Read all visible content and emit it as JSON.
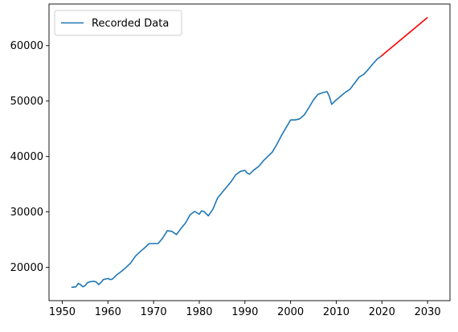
{
  "chart_data": {
    "type": "line",
    "xlim": [
      1947.1,
      2034.9
    ],
    "ylim": [
      14000,
      67500
    ],
    "x_ticks": [
      1950,
      1960,
      1970,
      1980,
      1990,
      2000,
      2010,
      2020,
      2030
    ],
    "y_ticks": [
      20000,
      30000,
      40000,
      50000,
      60000
    ],
    "grid": false,
    "legend_position": "top-left",
    "series": [
      {
        "name": "Recorded Data",
        "color": "#1f77b4",
        "points": [
          [
            1952.0,
            16400
          ],
          [
            1953.0,
            16500
          ],
          [
            1953.5,
            17100
          ],
          [
            1954.0,
            16900
          ],
          [
            1954.5,
            16500
          ],
          [
            1955.0,
            16700
          ],
          [
            1955.5,
            17200
          ],
          [
            1956.0,
            17400
          ],
          [
            1957.0,
            17500
          ],
          [
            1957.5,
            17300
          ],
          [
            1958.0,
            16900
          ],
          [
            1958.5,
            17300
          ],
          [
            1959.0,
            17800
          ],
          [
            1960.0,
            18000
          ],
          [
            1960.5,
            17800
          ],
          [
            1961.0,
            17900
          ],
          [
            1962.0,
            18700
          ],
          [
            1963.0,
            19300
          ],
          [
            1964.0,
            20000
          ],
          [
            1965.0,
            20800
          ],
          [
            1966.0,
            22000
          ],
          [
            1967.0,
            22800
          ],
          [
            1968.0,
            23500
          ],
          [
            1969.0,
            24300
          ],
          [
            1970.0,
            24300
          ],
          [
            1971.0,
            24300
          ],
          [
            1972.0,
            25300
          ],
          [
            1973.0,
            26600
          ],
          [
            1974.0,
            26500
          ],
          [
            1975.0,
            25900
          ],
          [
            1976.0,
            27000
          ],
          [
            1977.0,
            28000
          ],
          [
            1978.0,
            29500
          ],
          [
            1979.0,
            30100
          ],
          [
            1980.0,
            29600
          ],
          [
            1980.5,
            30200
          ],
          [
            1981.0,
            30100
          ],
          [
            1982.0,
            29300
          ],
          [
            1983.0,
            30500
          ],
          [
            1984.0,
            32500
          ],
          [
            1985.0,
            33500
          ],
          [
            1986.0,
            34500
          ],
          [
            1987.0,
            35500
          ],
          [
            1988.0,
            36700
          ],
          [
            1989.0,
            37300
          ],
          [
            1990.0,
            37500
          ],
          [
            1990.5,
            37000
          ],
          [
            1991.0,
            36800
          ],
          [
            1992.0,
            37600
          ],
          [
            1993.0,
            38200
          ],
          [
            1994.0,
            39200
          ],
          [
            1995.0,
            40000
          ],
          [
            1996.0,
            40800
          ],
          [
            1997.0,
            42200
          ],
          [
            1998.0,
            43800
          ],
          [
            1999.0,
            45200
          ],
          [
            2000.0,
            46600
          ],
          [
            2001.0,
            46600
          ],
          [
            2002.0,
            46800
          ],
          [
            2003.0,
            47500
          ],
          [
            2004.0,
            48800
          ],
          [
            2005.0,
            50200
          ],
          [
            2006.0,
            51200
          ],
          [
            2007.0,
            51500
          ],
          [
            2008.0,
            51700
          ],
          [
            2008.5,
            50800
          ],
          [
            2009.0,
            49400
          ],
          [
            2010.0,
            50200
          ],
          [
            2011.0,
            50900
          ],
          [
            2012.0,
            51600
          ],
          [
            2013.0,
            52100
          ],
          [
            2014.0,
            53200
          ],
          [
            2015.0,
            54300
          ],
          [
            2016.0,
            54800
          ],
          [
            2017.0,
            55700
          ],
          [
            2018.0,
            56700
          ],
          [
            2019.0,
            57600
          ],
          [
            2019.7,
            58000
          ]
        ]
      },
      {
        "name": "",
        "color": "#ff0000",
        "points": [
          [
            2019.7,
            58000
          ],
          [
            2030.0,
            65100
          ]
        ]
      }
    ]
  }
}
